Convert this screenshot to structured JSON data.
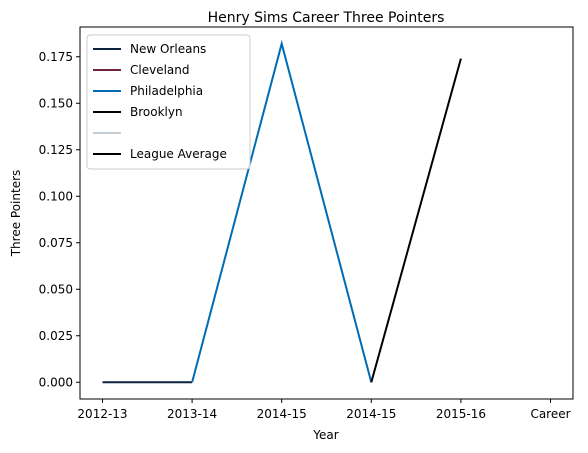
{
  "chart_data": {
    "type": "line",
    "title": "Henry Sims Career Three Pointers",
    "xlabel": "Year",
    "ylabel": "Three Pointers",
    "categories": [
      "2012-13",
      "2013-14",
      "2014-15",
      "2014-15",
      "2015-16",
      "Career"
    ],
    "ylim": [
      -0.009,
      0.191
    ],
    "yticks": [
      0.0,
      0.025,
      0.05,
      0.075,
      0.1,
      0.125,
      0.15,
      0.175
    ],
    "ytick_labels": [
      "0.000",
      "0.025",
      "0.050",
      "0.075",
      "0.100",
      "0.125",
      "0.150",
      "0.175"
    ],
    "legend_position": "upper-left",
    "series": [
      {
        "name": "New Orleans",
        "color": "#0c2340",
        "points": [
          {
            "x": 0,
            "y": 0.0
          },
          {
            "x": 1,
            "y": 0.0
          }
        ]
      },
      {
        "name": "Cleveland",
        "color": "#6f263d",
        "points": [
          {
            "x": 1,
            "y": 0.0
          },
          {
            "x": 1,
            "y": 0.0
          }
        ]
      },
      {
        "name": "Philadelphia",
        "color": "#006bb6",
        "points": [
          {
            "x": 1,
            "y": 0.0
          },
          {
            "x": 2,
            "y": 0.182
          },
          {
            "x": 3,
            "y": 0.0
          }
        ]
      },
      {
        "name": "Brooklyn",
        "color": "#000000",
        "points": [
          {
            "x": 3,
            "y": 0.0
          },
          {
            "x": 3,
            "y": 0.0
          }
        ]
      },
      {
        "name": "",
        "color": "#c4ced4",
        "points": []
      },
      {
        "name": "League Average",
        "color": "#000000",
        "points": [
          {
            "x": 3,
            "y": 0.0
          },
          {
            "x": 4,
            "y": 0.174
          }
        ]
      }
    ]
  }
}
